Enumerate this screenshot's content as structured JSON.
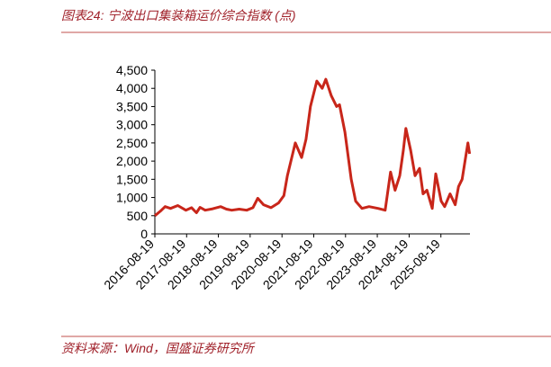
{
  "header": {
    "title": "图表24:  宁波出口集装箱运价综合指数 (点)"
  },
  "chart_data": {
    "type": "line",
    "x": [
      "2016-08-19",
      "2016-10-20",
      "2016-12-15",
      "2017-02-15",
      "2017-05-10",
      "2017-08-10",
      "2017-10-15",
      "2017-12-10",
      "2018-01-20",
      "2018-03-20",
      "2018-06-15",
      "2018-09-15",
      "2018-11-20",
      "2019-01-20",
      "2019-04-15",
      "2019-07-10",
      "2019-09-20",
      "2019-11-15",
      "2020-01-20",
      "2020-04-15",
      "2020-07-10",
      "2020-09-10",
      "2020-10-20",
      "2021-01-19",
      "2021-04-01",
      "2021-05-22",
      "2021-07-12",
      "2021-09-23",
      "2021-11-24",
      "2022-01-05",
      "2022-03-08",
      "2022-05-09",
      "2022-06-11",
      "2022-08-12",
      "2022-10-23",
      "2022-12-13",
      "2023-02-24",
      "2023-05-16",
      "2023-08-28",
      "2023-11-17",
      "2024-01-19",
      "2024-03-10",
      "2024-05-03",
      "2024-06-13",
      "2024-07-12",
      "2024-09-05",
      "2024-10-26",
      "2024-12-17",
      "2025-01-26",
      "2025-03-11",
      "2025-05-12",
      "2025-06-21",
      "2025-08-22",
      "2025-10-01",
      "2025-12-02",
      "2026-01-30",
      "2026-03-10",
      "2026-04-20",
      "2026-06-25",
      "2026-07-15"
    ],
    "series": [
      {
        "color": "#c8261a",
        "values": [
          500,
          620,
          750,
          700,
          780,
          650,
          720,
          580,
          730,
          650,
          690,
          750,
          680,
          650,
          680,
          650,
          720,
          980,
          800,
          720,
          850,
          1050,
          1600,
          2500,
          2100,
          2600,
          3500,
          4200,
          4000,
          4250,
          3800,
          3500,
          3550,
          2800,
          1500,
          900,
          700,
          750,
          700,
          650,
          1700,
          1200,
          1600,
          2300,
          2900,
          2300,
          1600,
          1800,
          1100,
          1200,
          700,
          1650,
          900,
          750,
          1100,
          800,
          1300,
          1500,
          2500,
          2200
        ]
      }
    ],
    "xlim": [
      "2016-08-19",
      "2026-07-19"
    ],
    "xticks": [
      "2016-08-19",
      "2017-08-19",
      "2018-08-19",
      "2019-08-19",
      "2020-08-19",
      "2021-08-19",
      "2022-08-19",
      "2023-08-19",
      "2024-08-19",
      "2025-08-19"
    ],
    "ylim": [
      0,
      4500
    ],
    "yticks": [
      0,
      500,
      {
        "value": 1000,
        "label": "1,000"
      },
      {
        "value": 1500,
        "label": "1,500"
      },
      {
        "value": 2000,
        "label": "2,000"
      },
      {
        "value": 2500,
        "label": "2,500"
      },
      {
        "value": 3000,
        "label": "3,000"
      },
      {
        "value": 3500,
        "label": "3,500"
      },
      {
        "value": 4000,
        "label": "4,000"
      },
      {
        "value": 4500,
        "label": "4,500"
      }
    ],
    "grid": false
  },
  "footer": {
    "source": "资料来源：Wind，国盛证券研究所"
  }
}
